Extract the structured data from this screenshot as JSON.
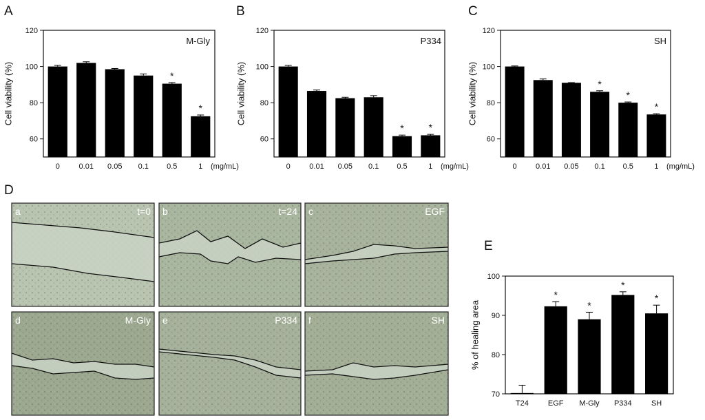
{
  "figure_label_D": "D",
  "chart_data": [
    {
      "panel": "A",
      "type": "bar",
      "legend": "M-Gly",
      "ylabel": "Cell viability (%)",
      "unit": "(mg/mL)",
      "categories": [
        "0",
        "0.01",
        "0.05",
        "0.1",
        "0.5",
        "1"
      ],
      "values": [
        100,
        102,
        98.5,
        95,
        90.5,
        72.5
      ],
      "errors": [
        0.6,
        0.6,
        0.4,
        0.9,
        0.6,
        0.7
      ],
      "significant": [
        false,
        false,
        false,
        false,
        true,
        true
      ],
      "ylim": [
        50,
        120
      ],
      "yticks": [
        60,
        80,
        100,
        120
      ]
    },
    {
      "panel": "B",
      "type": "bar",
      "legend": "P334",
      "ylabel": "Cell viability (%)",
      "unit": "(mg/mL)",
      "categories": [
        "0",
        "0.01",
        "0.05",
        "0.1",
        "0.5",
        "1"
      ],
      "values": [
        100,
        86.5,
        82.5,
        83,
        61.5,
        62
      ],
      "errors": [
        0.6,
        0.5,
        0.5,
        0.9,
        0.6,
        0.5
      ],
      "significant": [
        false,
        false,
        false,
        false,
        true,
        true
      ],
      "ylim": [
        50,
        120
      ],
      "yticks": [
        60,
        80,
        100,
        120
      ]
    },
    {
      "panel": "C",
      "type": "bar",
      "legend": "SH",
      "ylabel": "Cell viability (%)",
      "unit": "(mg/mL)",
      "categories": [
        "0",
        "0.01",
        "0.05",
        "0.1",
        "0.5",
        "1"
      ],
      "values": [
        100,
        92.5,
        91,
        86,
        80,
        73.5
      ],
      "errors": [
        0.3,
        0.6,
        0.1,
        0.6,
        0.4,
        0.4
      ],
      "significant": [
        false,
        false,
        false,
        true,
        true,
        true
      ],
      "ylim": [
        50,
        120
      ],
      "yticks": [
        60,
        80,
        100,
        120
      ]
    },
    {
      "panel": "E",
      "type": "bar",
      "legend": "",
      "ylabel": "% of healing area",
      "unit": "",
      "categories": [
        "T24",
        "EGF",
        "M-Gly",
        "P334",
        "SH"
      ],
      "values": [
        70.2,
        92.3,
        89,
        95.2,
        90.5
      ],
      "errors": [
        2,
        1.2,
        1.8,
        0.8,
        2.1
      ],
      "significant": [
        false,
        true,
        true,
        true,
        true
      ],
      "ylim": [
        70,
        100
      ],
      "yticks": [
        70,
        80,
        90,
        100
      ]
    }
  ],
  "micrographs": [
    {
      "label": "a",
      "tag": "t=0",
      "bg": "#b8c4b0"
    },
    {
      "label": "b",
      "tag": "t=24",
      "bg": "#a9b69f"
    },
    {
      "label": "c",
      "tag": "EGF",
      "bg": "#a7b39c"
    },
    {
      "label": "d",
      "tag": "M-Gly",
      "bg": "#9ca990"
    },
    {
      "label": "e",
      "tag": "P334",
      "bg": "#a5b19a"
    },
    {
      "label": "f",
      "tag": "SH",
      "bg": "#a2ae96"
    }
  ],
  "colors": {
    "bar": "#000000",
    "gap": "#c9d4c6",
    "line": "#111111"
  }
}
